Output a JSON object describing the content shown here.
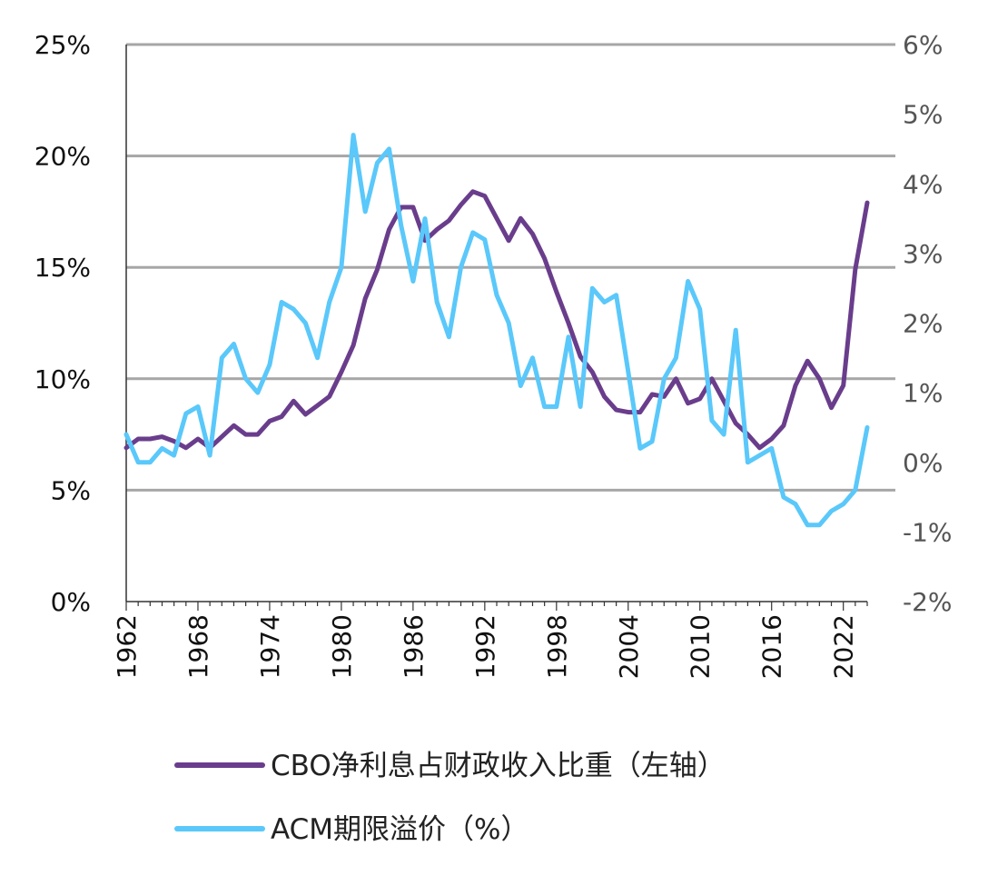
{
  "chart_data": {
    "type": "line",
    "title": "",
    "xlabel": "",
    "ylabel": "",
    "ylabel_right": "",
    "grid": true,
    "colors": {
      "cbo": "#6a3d8c",
      "acm": "#5ac8fa",
      "grid": "#a6a6a6",
      "axis": "#333333",
      "left_tick_text": "#111111",
      "right_tick_text": "#555555",
      "legend_text": "#222222"
    },
    "x_range": [
      1962,
      2024
    ],
    "x_ticks": [
      1962,
      1968,
      1974,
      1980,
      1986,
      1992,
      1998,
      2004,
      2010,
      2016,
      2022
    ],
    "y_left": {
      "range": [
        0,
        25
      ],
      "ticks": [
        0,
        5,
        10,
        15,
        20,
        25
      ],
      "tick_labels": [
        "0%",
        "5%",
        "10%",
        "15%",
        "20%",
        "25%"
      ]
    },
    "y_right": {
      "range": [
        -2,
        6
      ],
      "ticks": [
        -2,
        -1,
        0,
        1,
        2,
        3,
        4,
        5,
        6
      ],
      "tick_labels": [
        "-2%",
        "-1%",
        "0%",
        "1%",
        "2%",
        "3%",
        "4%",
        "5%",
        "6%"
      ]
    },
    "legend": {
      "placement": "bottom",
      "items": [
        {
          "label": "CBO净利息占财政收入比重（左轴）",
          "series": "cbo"
        },
        {
          "label": "ACM期限溢价（%）",
          "series": "acm"
        }
      ]
    },
    "series": [
      {
        "name": "CBO净利息占财政收入比重（左轴）",
        "key": "cbo",
        "axis": "left",
        "x": [
          1962,
          1963,
          1964,
          1965,
          1966,
          1967,
          1968,
          1969,
          1970,
          1971,
          1972,
          1973,
          1974,
          1975,
          1976,
          1977,
          1978,
          1979,
          1980,
          1981,
          1982,
          1983,
          1984,
          1985,
          1986,
          1987,
          1988,
          1989,
          1990,
          1991,
          1992,
          1993,
          1994,
          1995,
          1996,
          1997,
          1998,
          1999,
          2000,
          2001,
          2002,
          2003,
          2004,
          2005,
          2006,
          2007,
          2008,
          2009,
          2010,
          2011,
          2012,
          2013,
          2014,
          2015,
          2016,
          2017,
          2018,
          2019,
          2020,
          2021,
          2022,
          2023,
          2024
        ],
        "values": [
          6.9,
          7.3,
          7.3,
          7.4,
          7.2,
          6.9,
          7.3,
          6.9,
          7.4,
          7.9,
          7.5,
          7.5,
          8.1,
          8.3,
          9.0,
          8.4,
          8.8,
          9.2,
          10.3,
          11.5,
          13.6,
          14.9,
          16.7,
          17.7,
          17.7,
          16.2,
          16.7,
          17.1,
          17.8,
          18.4,
          18.2,
          17.2,
          16.2,
          17.2,
          16.5,
          15.4,
          13.9,
          12.5,
          11.0,
          10.3,
          9.2,
          8.6,
          8.5,
          8.5,
          9.3,
          9.2,
          10.0,
          8.9,
          9.1,
          10.0,
          9.0,
          8.0,
          7.5,
          6.9,
          7.3,
          7.9,
          9.7,
          10.8,
          10.0,
          8.7,
          9.7,
          14.9,
          17.9
        ]
      },
      {
        "name": "ACM期限溢价（%）",
        "key": "acm",
        "axis": "right",
        "x": [
          1962,
          1963,
          1964,
          1965,
          1966,
          1967,
          1968,
          1969,
          1970,
          1971,
          1972,
          1973,
          1974,
          1975,
          1976,
          1977,
          1978,
          1979,
          1980,
          1981,
          1982,
          1983,
          1984,
          1985,
          1986,
          1987,
          1988,
          1989,
          1990,
          1991,
          1992,
          1993,
          1994,
          1995,
          1996,
          1997,
          1998,
          1999,
          2000,
          2001,
          2002,
          2003,
          2004,
          2005,
          2006,
          2007,
          2008,
          2009,
          2010,
          2011,
          2012,
          2013,
          2014,
          2015,
          2016,
          2017,
          2018,
          2019,
          2020,
          2021,
          2022,
          2023,
          2024
        ],
        "values": [
          0.4,
          0.0,
          0.0,
          0.2,
          0.1,
          0.7,
          0.8,
          0.1,
          1.5,
          1.7,
          1.2,
          1.0,
          1.4,
          2.3,
          2.2,
          2.0,
          1.5,
          2.3,
          2.8,
          4.7,
          3.6,
          4.3,
          4.5,
          3.4,
          2.6,
          3.5,
          2.3,
          1.8,
          2.8,
          3.3,
          3.2,
          2.4,
          2.0,
          1.1,
          1.5,
          0.8,
          0.8,
          1.8,
          0.8,
          2.5,
          2.3,
          2.4,
          1.3,
          0.2,
          0.3,
          1.2,
          1.5,
          2.6,
          2.2,
          0.6,
          0.4,
          1.9,
          0.0,
          0.1,
          0.2,
          -0.5,
          -0.6,
          -0.9,
          -0.9,
          -0.7,
          -0.6,
          -0.4,
          0.5
        ]
      }
    ]
  }
}
